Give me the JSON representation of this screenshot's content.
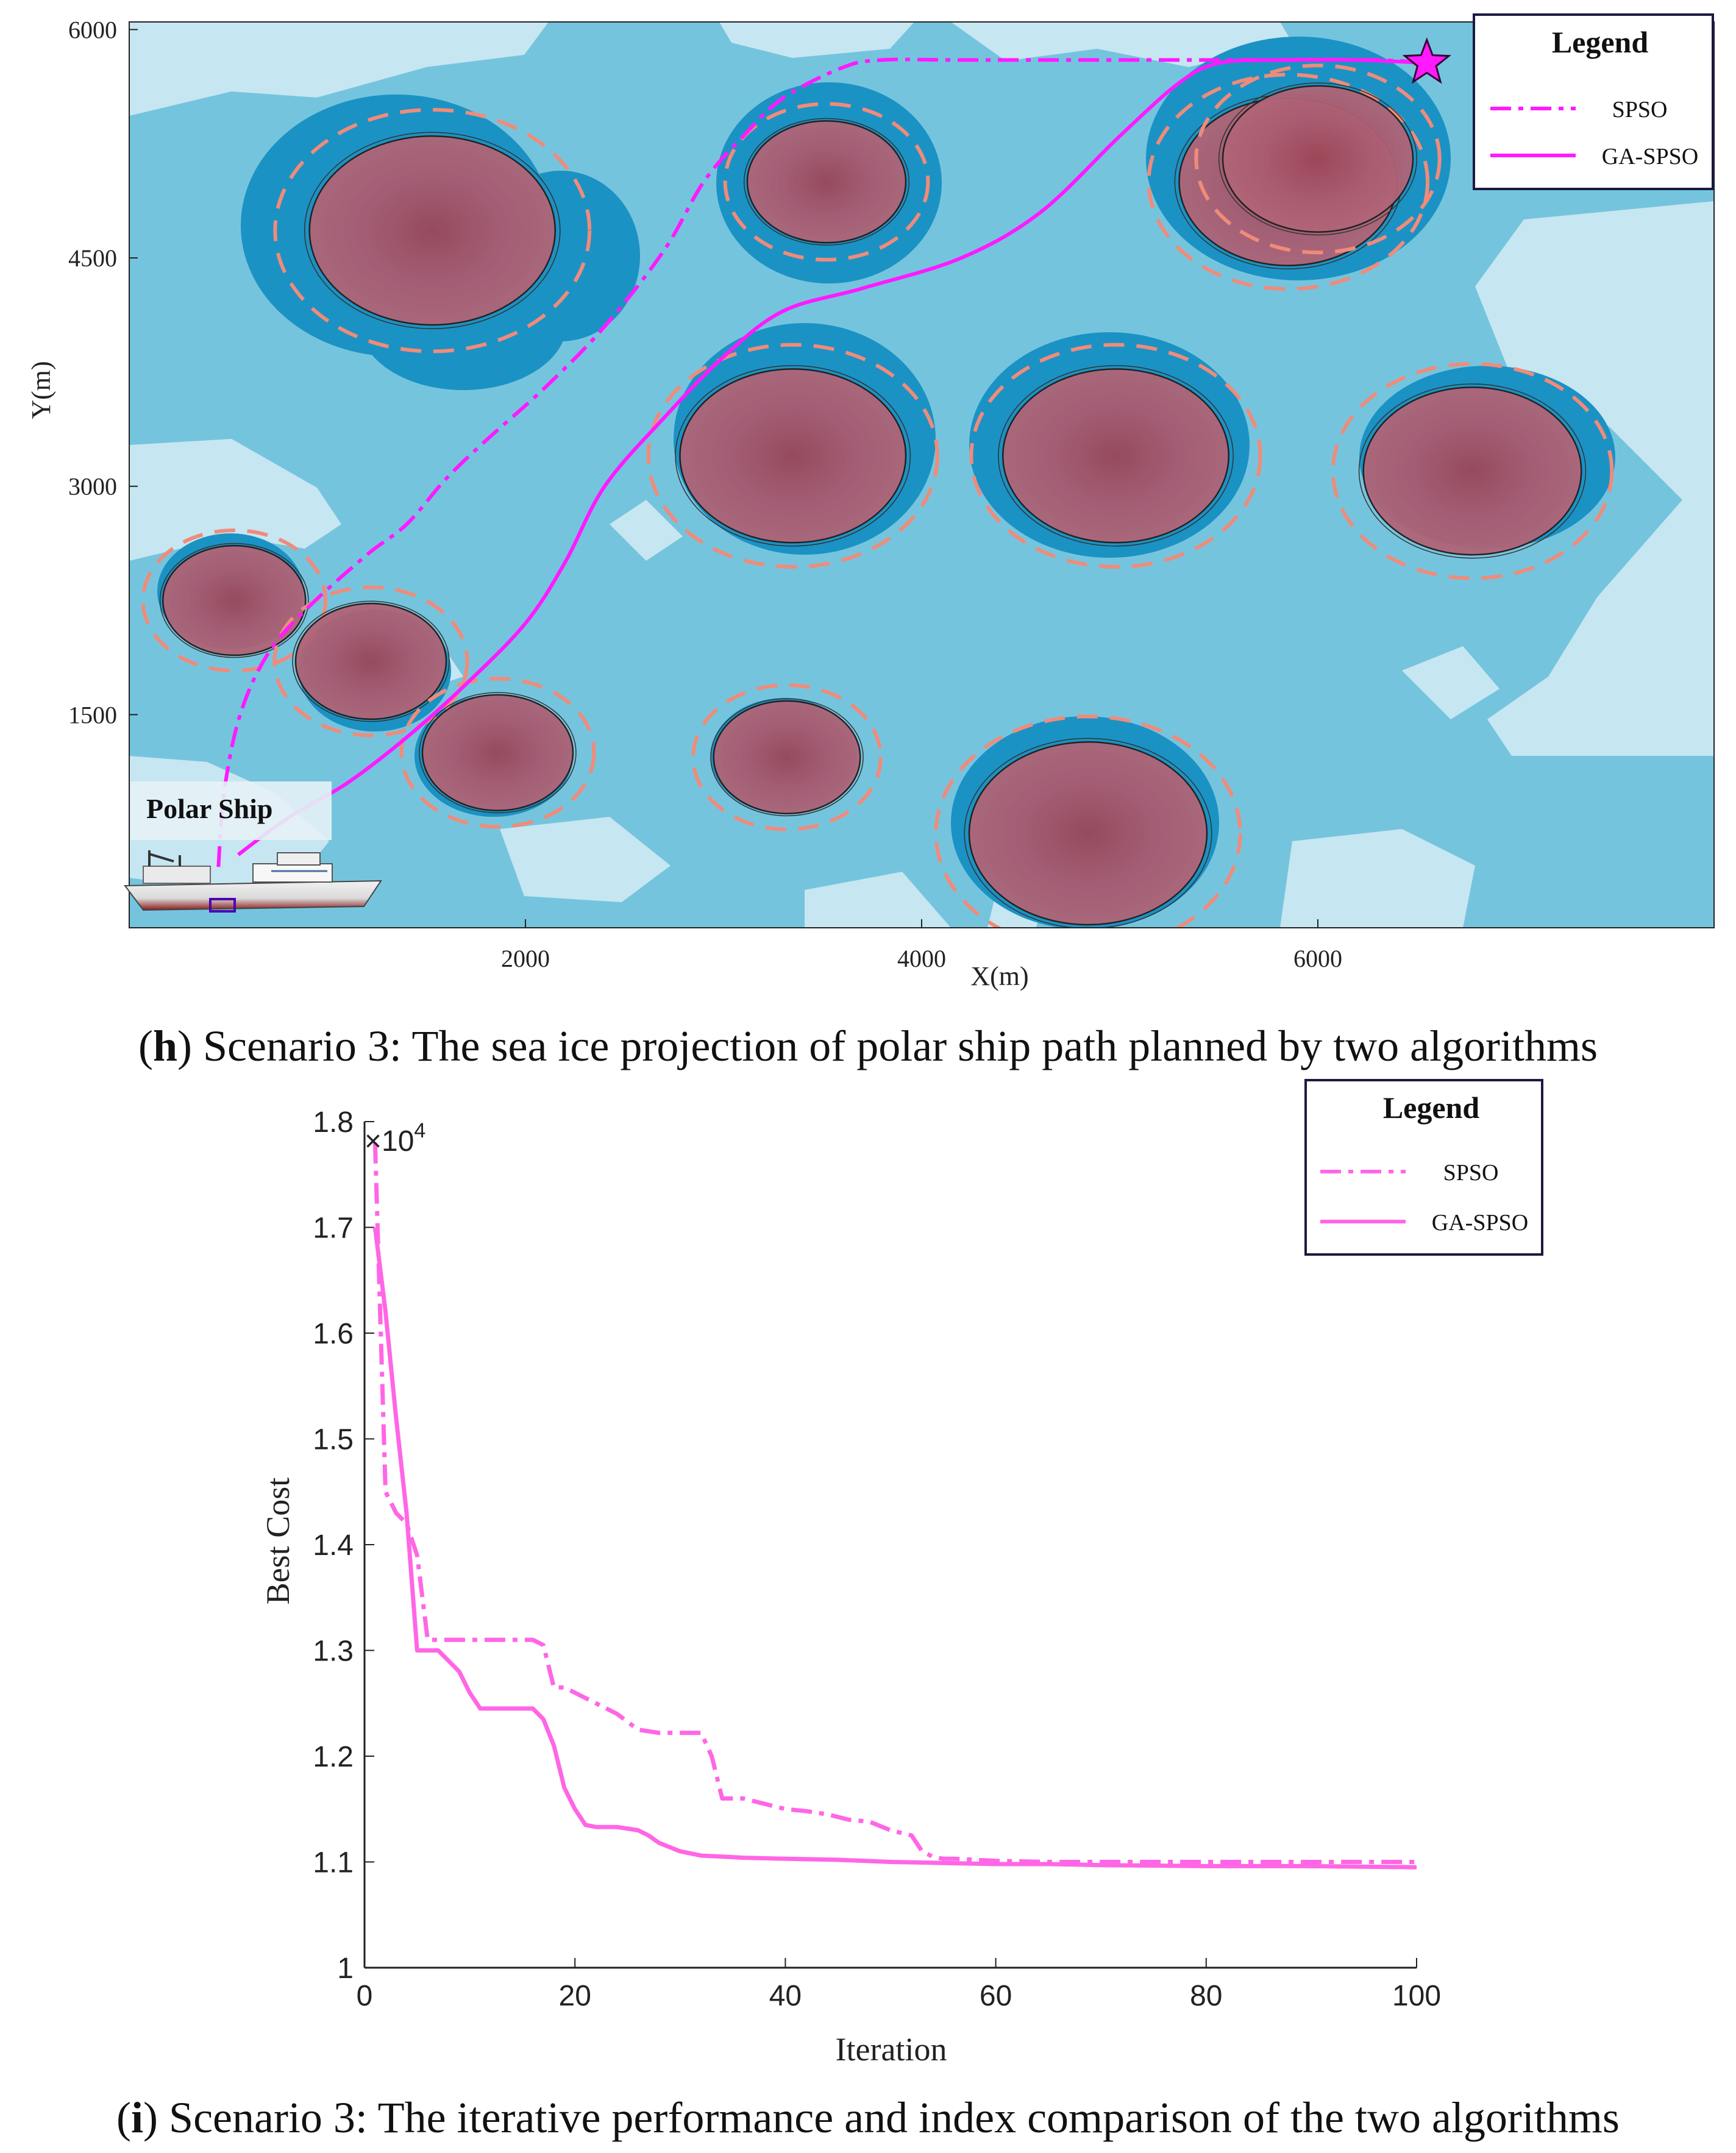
{
  "chart_data": [
    {
      "type": "scatter",
      "title": "",
      "xlabel": "X(m)",
      "ylabel": "Y(m)",
      "xlim": [
        0,
        8000
      ],
      "ylim": [
        100,
        6050
      ],
      "x_ticks": [
        2000,
        4000,
        6000
      ],
      "y_ticks": [
        1500,
        3000,
        4500,
        6000
      ],
      "x_tick_labels": [
        "2000",
        "4000",
        "6000"
      ],
      "y_tick_labels": [
        "1500",
        "3000",
        "4500",
        "6000"
      ],
      "caption_bold": "h",
      "caption": ") Scenario 3: The sea ice projection of polar ship path planned by two algorithms",
      "caption_open": "(",
      "legend": {
        "title": "Legend",
        "position": "top-right",
        "entries": [
          {
            "label": "SPSO",
            "style": "dash-dot"
          },
          {
            "label": "GA-SPSO",
            "style": "solid"
          }
        ]
      },
      "start_label": "Polar Ship",
      "goal_marker": "star",
      "colors": {
        "path": "#ff1aff",
        "water": "#75c4de",
        "open_water": "#c6e6f2",
        "ice_edge": "#1b92c4",
        "obstacle": "#8e4a70",
        "safety_ring": "#f08b7a"
      },
      "obstacles": [
        {
          "cx": 1530,
          "cy": 4680,
          "r": 620
        },
        {
          "cx": 3520,
          "cy": 5000,
          "r": 400
        },
        {
          "cx": 3350,
          "cy": 3200,
          "r": 570
        },
        {
          "cx": 4980,
          "cy": 3200,
          "r": 570
        },
        {
          "cx": 6780,
          "cy": 3100,
          "r": 550
        },
        {
          "cx": 5850,
          "cy": 5000,
          "r": 550
        },
        {
          "cx": 6000,
          "cy": 5150,
          "r": 480
        },
        {
          "cx": 530,
          "cy": 2250,
          "r": 360
        },
        {
          "cx": 1220,
          "cy": 1850,
          "r": 380
        },
        {
          "cx": 1860,
          "cy": 1250,
          "r": 380
        },
        {
          "cx": 3320,
          "cy": 1220,
          "r": 370
        },
        {
          "cx": 4840,
          "cy": 720,
          "r": 600
        }
      ],
      "series": [
        {
          "name": "SPSO",
          "x": [
            450,
            480,
            560,
            700,
            900,
            1200,
            1400,
            1600,
            1800,
            2100,
            2400,
            2700,
            2900,
            3100,
            3300,
            3600,
            3800,
            4200,
            5000,
            5800,
            6300,
            6550
          ],
          "y": [
            500,
            1000,
            1500,
            1900,
            2200,
            2550,
            2750,
            3050,
            3300,
            3650,
            4050,
            4550,
            5000,
            5300,
            5550,
            5750,
            5800,
            5800,
            5800,
            5800,
            5800,
            5780
          ]
        },
        {
          "name": "GA-SPSO",
          "x": [
            550,
            800,
            1100,
            1400,
            1700,
            2000,
            2200,
            2400,
            2700,
            3000,
            3300,
            3700,
            4200,
            4600,
            5000,
            5300,
            5500,
            5800,
            6200,
            6550
          ],
          "y": [
            580,
            820,
            1050,
            1350,
            1700,
            2100,
            2500,
            3000,
            3450,
            3850,
            4150,
            4300,
            4500,
            4800,
            5300,
            5650,
            5780,
            5800,
            5800,
            5780
          ]
        }
      ]
    },
    {
      "type": "line",
      "title": "",
      "xlabel": "Iteration",
      "ylabel": "Best Cost",
      "xlim": [
        0,
        100
      ],
      "ylim": [
        1.0,
        1.8
      ],
      "x_ticks": [
        0,
        20,
        40,
        60,
        80,
        100
      ],
      "x_tick_labels": [
        "0",
        "20",
        "40",
        "60",
        "80",
        "100"
      ],
      "y_ticks": [
        1.0,
        1.1,
        1.2,
        1.3,
        1.4,
        1.5,
        1.6,
        1.7,
        1.8
      ],
      "y_tick_labels": [
        "1",
        "1.1",
        "1.2",
        "1.3",
        "1.4",
        "1.5",
        "1.6",
        "1.7",
        "1.8"
      ],
      "y_multiplier": "×10",
      "y_multiplier_exp": "4",
      "caption_bold": "i",
      "caption_open": "(",
      "caption": ") Scenario 3: The iterative performance and index comparison of the two algorithms",
      "legend": {
        "title": "Legend",
        "position": "top-right",
        "entries": [
          {
            "label": "SPSO",
            "style": "dash-dot"
          },
          {
            "label": "GA-SPSO",
            "style": "solid"
          }
        ]
      },
      "colors": {
        "SPSO": "#ff66e5",
        "GA-SPSO": "#ff66e5"
      },
      "series": [
        {
          "name": "SPSO",
          "x": [
            1,
            2,
            3,
            4,
            5,
            6,
            7,
            8,
            9,
            10,
            12,
            14,
            16,
            17,
            18,
            19,
            20,
            21,
            22,
            24,
            26,
            28,
            30,
            32,
            33,
            34,
            35,
            36,
            38,
            40,
            42,
            44,
            46,
            48,
            50,
            52,
            53,
            54,
            55,
            56,
            58,
            60,
            65,
            70,
            80,
            90,
            100
          ],
          "y": [
            1.78,
            1.45,
            1.43,
            1.42,
            1.39,
            1.31,
            1.31,
            1.31,
            1.31,
            1.31,
            1.31,
            1.31,
            1.31,
            1.305,
            1.265,
            1.265,
            1.26,
            1.255,
            1.25,
            1.24,
            1.225,
            1.222,
            1.222,
            1.222,
            1.2,
            1.16,
            1.16,
            1.16,
            1.155,
            1.15,
            1.148,
            1.145,
            1.14,
            1.138,
            1.13,
            1.125,
            1.11,
            1.105,
            1.103,
            1.103,
            1.102,
            1.101,
            1.1,
            1.1,
            1.1,
            1.1,
            1.1
          ]
        },
        {
          "name": "GA-SPSO",
          "x": [
            1,
            2,
            3,
            4,
            5,
            6,
            7,
            8,
            9,
            10,
            11,
            12,
            13,
            14,
            15,
            16,
            17,
            18,
            19,
            20,
            21,
            22,
            24,
            26,
            27,
            28,
            30,
            32,
            34,
            36,
            40,
            45,
            50,
            55,
            60,
            65,
            70,
            80,
            90,
            100
          ],
          "y": [
            1.7,
            1.62,
            1.52,
            1.43,
            1.3,
            1.3,
            1.3,
            1.29,
            1.28,
            1.26,
            1.245,
            1.245,
            1.245,
            1.245,
            1.245,
            1.245,
            1.235,
            1.21,
            1.17,
            1.15,
            1.135,
            1.133,
            1.133,
            1.13,
            1.125,
            1.118,
            1.11,
            1.106,
            1.105,
            1.104,
            1.103,
            1.102,
            1.1,
            1.099,
            1.098,
            1.098,
            1.097,
            1.096,
            1.096,
            1.095
          ]
        }
      ]
    }
  ]
}
